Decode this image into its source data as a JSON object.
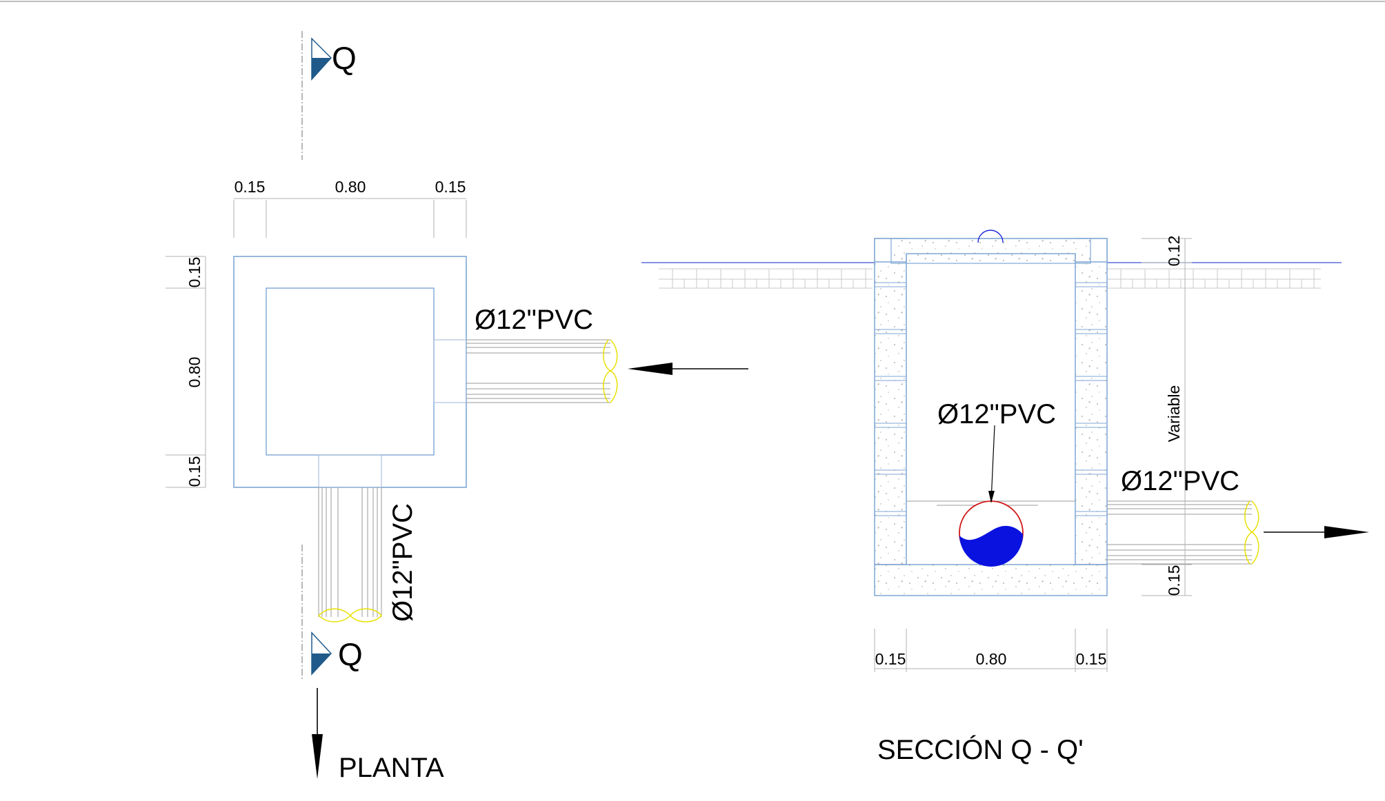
{
  "plan": {
    "section_marker_top": "Q",
    "section_marker_bottom": "Q",
    "dim_top_left": "0.15",
    "dim_top_mid": "0.80",
    "dim_top_right": "0.15",
    "dim_left_top": "0.15",
    "dim_left_mid": "0.80",
    "dim_left_bottom": "0.15",
    "pipe_inlet_label": "Ø12\"PVC",
    "pipe_outlet_label": "Ø12\"PVC",
    "title": "PLANTA"
  },
  "section": {
    "pipe_inner_label": "Ø12\"PVC",
    "pipe_outlet_label": "Ø12\"PVC",
    "dim_right_top": "0.12",
    "dim_right_mid": "Variable",
    "dim_right_bottom": "0.15",
    "dim_bottom_left": "0.15",
    "dim_bottom_mid": "0.80",
    "dim_bottom_right": "0.15",
    "title": "SECCIÓN  Q - Q'"
  },
  "colors": {
    "outline": "#7ea6d4",
    "section_marker": "#1f5a8a",
    "ground_line": "#3a4fd6",
    "water": "#0a12e0",
    "pipe_ring": "#d01818",
    "pipe_end": "#e8e000",
    "hatch": "#c8c8c8"
  }
}
